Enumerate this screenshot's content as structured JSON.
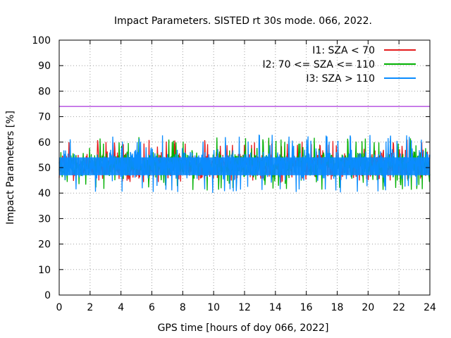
{
  "chart_data": {
    "type": "line",
    "title": "Impact Parameters. SISTED rt 30s mode. 066, 2022.",
    "xlabel": "GPS time [hours of doy 066, 2022]",
    "ylabel": "Impact Parameters [%]",
    "xlim": [
      0,
      24
    ],
    "ylim": [
      0,
      100
    ],
    "xticks": [
      0,
      2,
      4,
      6,
      8,
      10,
      12,
      14,
      16,
      18,
      20,
      22,
      24
    ],
    "yticks": [
      0,
      10,
      20,
      30,
      40,
      50,
      60,
      70,
      80,
      90,
      100
    ],
    "grid": true,
    "legend_position": "top-right",
    "reference_line": {
      "y": 74,
      "color": "#9400d3"
    },
    "series": [
      {
        "name": "I1: SZA < 70",
        "color": "#e41a1c",
        "center": 51,
        "min": 44,
        "max": 61
      },
      {
        "name": "I2: 70 <= SZA <= 110",
        "color": "#00b000",
        "center": 51,
        "min": 41,
        "max": 62
      },
      {
        "name": "I3: SZA > 110",
        "color": "#0a8cff",
        "center": 51,
        "min": 40,
        "max": 63
      }
    ]
  }
}
